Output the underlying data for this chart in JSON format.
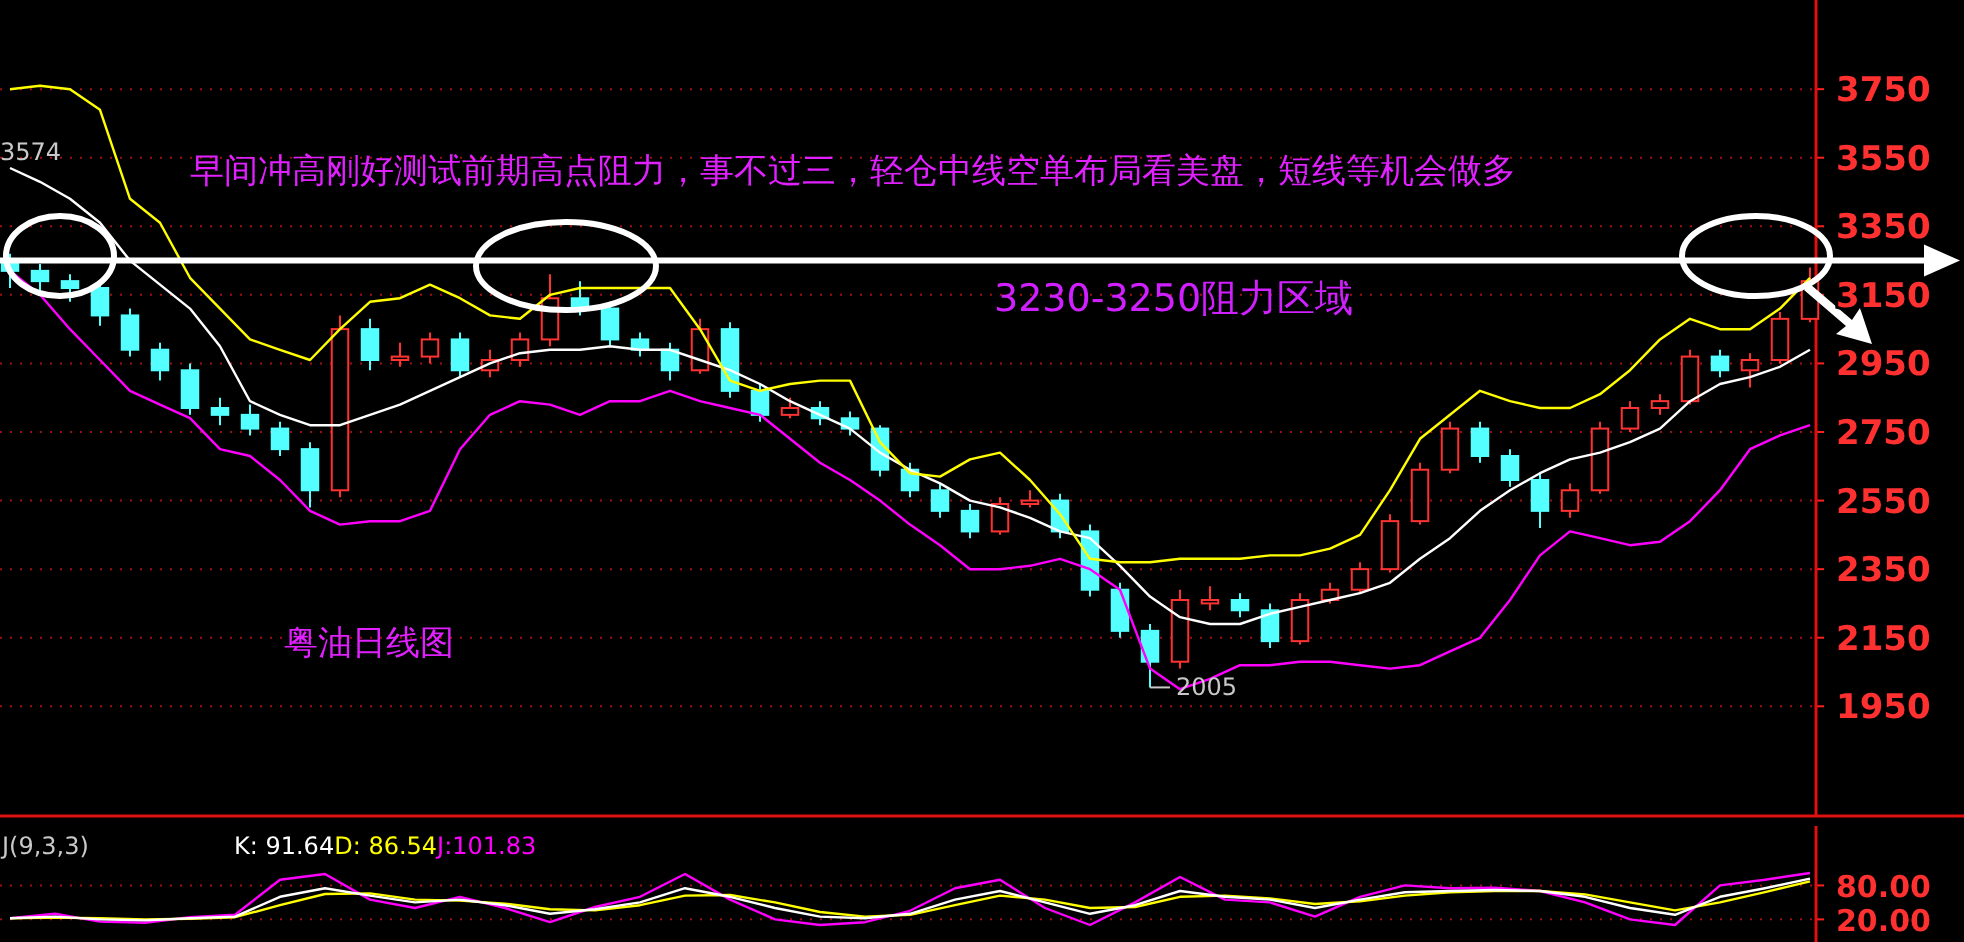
{
  "chart_data": [
    {
      "type": "candlestick",
      "categories": [
        null,
        null,
        null,
        null,
        null,
        null,
        null,
        null,
        null,
        null,
        null,
        null,
        null,
        null,
        null,
        null,
        null,
        null,
        null,
        null,
        null,
        null,
        null,
        null,
        null,
        null,
        null,
        null,
        null,
        null,
        null,
        null,
        null,
        null,
        null,
        null,
        null,
        null,
        null,
        null,
        null,
        null,
        null,
        null,
        null,
        null,
        null,
        null,
        null,
        null,
        null,
        null,
        null,
        null,
        null,
        null,
        null,
        null,
        null,
        null,
        null
      ],
      "ohlc": [
        [
          3240,
          3270,
          3170,
          3220
        ],
        [
          3220,
          3240,
          3150,
          3190
        ],
        [
          3190,
          3210,
          3130,
          3170
        ],
        [
          3170,
          3180,
          3060,
          3090
        ],
        [
          3090,
          3110,
          2970,
          2990
        ],
        [
          2990,
          3010,
          2900,
          2930
        ],
        [
          2930,
          2950,
          2800,
          2820
        ],
        [
          2820,
          2850,
          2770,
          2800
        ],
        [
          2800,
          2830,
          2740,
          2760
        ],
        [
          2760,
          2780,
          2680,
          2700
        ],
        [
          2700,
          2720,
          2530,
          2580
        ],
        [
          2580,
          3090,
          2560,
          3050
        ],
        [
          3050,
          3080,
          2930,
          2960
        ],
        [
          2960,
          3010,
          2940,
          2970
        ],
        [
          2970,
          3040,
          2950,
          3020
        ],
        [
          3020,
          3040,
          2910,
          2930
        ],
        [
          2930,
          2990,
          2910,
          2960
        ],
        [
          2960,
          3040,
          2940,
          3020
        ],
        [
          3020,
          3210,
          3000,
          3140
        ],
        [
          3140,
          3190,
          3090,
          3110
        ],
        [
          3110,
          3130,
          3000,
          3020
        ],
        [
          3020,
          3040,
          2970,
          2990
        ],
        [
          2990,
          3010,
          2900,
          2930
        ],
        [
          2930,
          3080,
          2920,
          3050
        ],
        [
          3050,
          3070,
          2850,
          2870
        ],
        [
          2870,
          2890,
          2780,
          2800
        ],
        [
          2800,
          2850,
          2790,
          2820
        ],
        [
          2820,
          2840,
          2770,
          2790
        ],
        [
          2790,
          2810,
          2740,
          2760
        ],
        [
          2760,
          2770,
          2620,
          2640
        ],
        [
          2640,
          2660,
          2560,
          2580
        ],
        [
          2580,
          2600,
          2500,
          2520
        ],
        [
          2520,
          2540,
          2440,
          2460
        ],
        [
          2460,
          2560,
          2450,
          2540
        ],
        [
          2540,
          2580,
          2530,
          2550
        ],
        [
          2550,
          2570,
          2440,
          2460
        ],
        [
          2460,
          2480,
          2270,
          2290
        ],
        [
          2290,
          2310,
          2150,
          2170
        ],
        [
          2170,
          2190,
          2005,
          2080
        ],
        [
          2080,
          2290,
          2060,
          2260
        ],
        [
          2250,
          2300,
          2230,
          2260
        ],
        [
          2260,
          2280,
          2210,
          2230
        ],
        [
          2230,
          2250,
          2120,
          2140
        ],
        [
          2140,
          2280,
          2130,
          2260
        ],
        [
          2260,
          2310,
          2250,
          2290
        ],
        [
          2290,
          2370,
          2280,
          2350
        ],
        [
          2350,
          2510,
          2340,
          2490
        ],
        [
          2490,
          2660,
          2480,
          2640
        ],
        [
          2640,
          2780,
          2630,
          2760
        ],
        [
          2760,
          2780,
          2660,
          2680
        ],
        [
          2680,
          2700,
          2590,
          2610
        ],
        [
          2610,
          2630,
          2470,
          2520
        ],
        [
          2520,
          2600,
          2500,
          2580
        ],
        [
          2580,
          2780,
          2570,
          2760
        ],
        [
          2760,
          2840,
          2750,
          2820
        ],
        [
          2820,
          2860,
          2800,
          2840
        ],
        [
          2840,
          2990,
          2830,
          2970
        ],
        [
          2970,
          2990,
          2910,
          2930
        ],
        [
          2930,
          2980,
          2880,
          2960
        ],
        [
          2960,
          3100,
          2950,
          3080
        ],
        [
          3080,
          3230,
          3070,
          3190
        ]
      ],
      "series": [
        {
          "type": "line",
          "color": "#ffff00",
          "values": [
            3750,
            3760,
            3750,
            3690,
            3430,
            3360,
            3200,
            3110,
            3020,
            2990,
            2960,
            3050,
            3130,
            3140,
            3180,
            3140,
            3090,
            3080,
            3150,
            3170,
            3170,
            3170,
            3170,
            3050,
            2900,
            2870,
            2890,
            2900,
            2900,
            2720,
            2630,
            2620,
            2670,
            2690,
            2610,
            2510,
            2380,
            2370,
            2370,
            2380,
            2380,
            2380,
            2390,
            2390,
            2410,
            2450,
            2580,
            2730,
            2800,
            2870,
            2840,
            2820,
            2820,
            2860,
            2930,
            3020,
            3080,
            3050,
            3050,
            3110,
            3200
          ]
        },
        {
          "type": "line",
          "color": "#ffffff",
          "values": [
            3520,
            3480,
            3430,
            3360,
            3250,
            3180,
            3110,
            3000,
            2840,
            2800,
            2770,
            2770,
            2800,
            2830,
            2870,
            2910,
            2950,
            2980,
            2990,
            2990,
            3000,
            2990,
            2990,
            2960,
            2930,
            2890,
            2840,
            2800,
            2760,
            2690,
            2640,
            2600,
            2550,
            2530,
            2500,
            2460,
            2440,
            2360,
            2270,
            2210,
            2190,
            2190,
            2220,
            2240,
            2260,
            2280,
            2310,
            2380,
            2440,
            2520,
            2580,
            2630,
            2670,
            2690,
            2720,
            2760,
            2840,
            2890,
            2910,
            2940,
            2990
          ]
        },
        {
          "type": "line",
          "color": "#ff00ff",
          "values": [
            3220,
            3150,
            3050,
            2960,
            2870,
            2830,
            2790,
            2700,
            2680,
            2610,
            2520,
            2480,
            2490,
            2490,
            2520,
            2700,
            2800,
            2840,
            2830,
            2800,
            2840,
            2840,
            2870,
            2840,
            2820,
            2800,
            2730,
            2660,
            2610,
            2550,
            2480,
            2420,
            2350,
            2350,
            2360,
            2380,
            2350,
            2290,
            2060,
            2000,
            2030,
            2070,
            2070,
            2080,
            2080,
            2070,
            2060,
            2070,
            2110,
            2150,
            2260,
            2390,
            2460,
            2440,
            2420,
            2430,
            2490,
            2580,
            2700,
            2740,
            2770
          ]
        }
      ],
      "ylim": [
        1630,
        4010
      ],
      "yticks": [
        1950,
        2150,
        2350,
        2550,
        2750,
        2950,
        3150,
        3350,
        3550,
        3750
      ],
      "grid": "y",
      "tick_labels": "y",
      "ref_lines": [
        {
          "axis": "y",
          "value": 3250,
          "label": "3230-3250阻力区域",
          "color": "#ffffff"
        }
      ],
      "annotations": [
        "早间冲高刚好测试前期高点阻力，事不过三，轻仓中线空单布局看美盘，短线等机会做多",
        "粤油日线图",
        "3574",
        {
          "text": "2005",
          "y": 2005
        }
      ]
    },
    {
      "type": "line",
      "title": "J(9,3,3)",
      "categories": [
        null,
        null,
        null,
        null,
        null,
        null,
        null,
        null,
        null,
        null,
        null,
        null,
        null,
        null,
        null,
        null,
        null,
        null,
        null,
        null,
        null,
        null,
        null,
        null,
        null,
        null,
        null,
        null,
        null,
        null,
        null,
        null,
        null,
        null,
        null,
        null,
        null,
        null,
        null,
        null,
        null
      ],
      "series": [
        {
          "name": "K: 91.64",
          "color": "#ffffff",
          "values": [
            22,
            25,
            20,
            18,
            22,
            25,
            60,
            75,
            62,
            50,
            55,
            45,
            30,
            38,
            50,
            75,
            60,
            40,
            25,
            22,
            30,
            55,
            70,
            50,
            30,
            45,
            70,
            60,
            55,
            40,
            55,
            68,
            70,
            72,
            70,
            60,
            40,
            28,
            60,
            75,
            92
          ]
        },
        {
          "name": "D: 86.54",
          "color": "#ffff00",
          "values": [
            22,
            23,
            22,
            20,
            21,
            24,
            45,
            65,
            66,
            55,
            53,
            48,
            38,
            36,
            45,
            62,
            63,
            50,
            33,
            25,
            28,
            45,
            62,
            55,
            40,
            42,
            60,
            62,
            57,
            47,
            52,
            62,
            68,
            70,
            70,
            64,
            50,
            36,
            50,
            68,
            87
          ]
        },
        {
          "name": "J:101.83",
          "color": "#ff00ff",
          "values": [
            22,
            30,
            16,
            14,
            24,
            28,
            90,
            100,
            55,
            40,
            60,
            40,
            15,
            42,
            60,
            100,
            55,
            20,
            10,
            15,
            35,
            75,
            90,
            40,
            10,
            50,
            95,
            55,
            50,
            25,
            60,
            80,
            75,
            76,
            70,
            50,
            20,
            10,
            80,
            90,
            102
          ]
        }
      ],
      "ylim": [
        -20,
        185
      ],
      "yticks": [
        {
          "value": 20,
          "label": "20.00"
        },
        {
          "value": 80,
          "label": "80.00"
        }
      ],
      "grid": "y",
      "tick_labels": "y",
      "legend": "top left"
    }
  ]
}
